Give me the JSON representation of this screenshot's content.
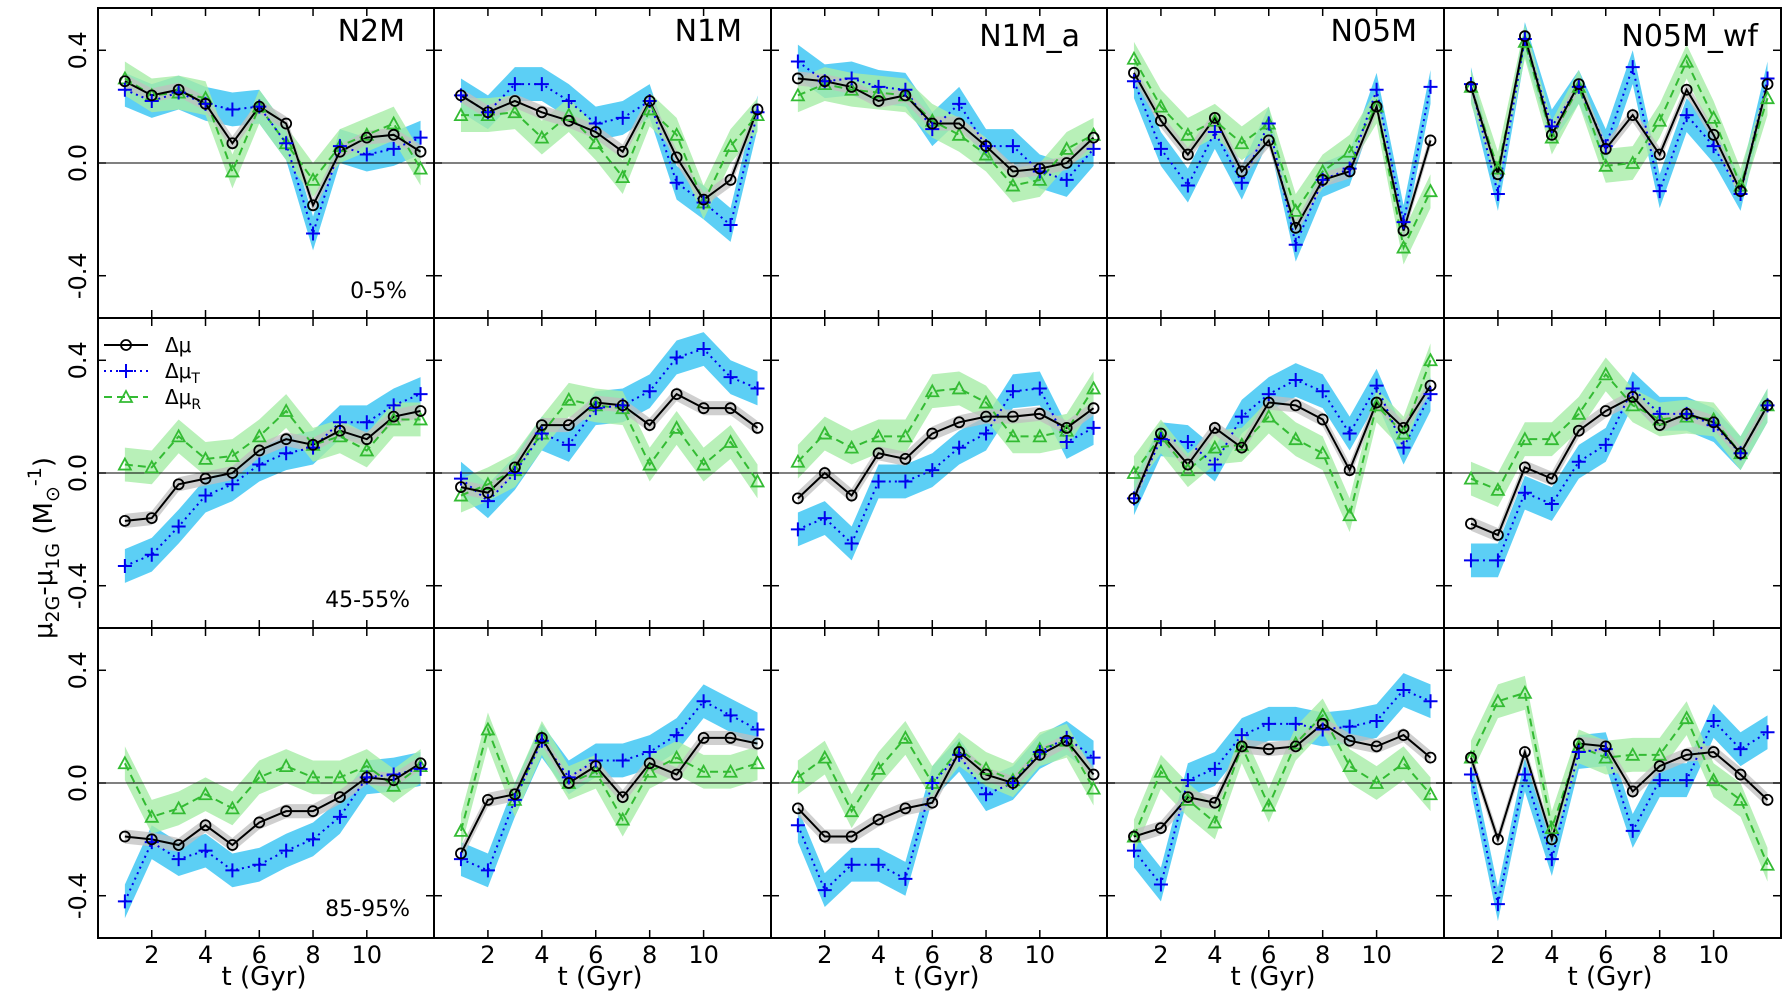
{
  "chart_data": {
    "type": "line",
    "ylabel_main": "μ",
    "ylabel_sub1": "2G",
    "ylabel_mid": "-μ",
    "ylabel_sub2": "1G",
    "ylabel_unit_open": " (M",
    "ylabel_unit_sub": "⊙",
    "ylabel_unit_sup": "-1",
    "ylabel_unit_close": ")",
    "xlabel": "t (Gyr)",
    "xlim": [
      0,
      12.5
    ],
    "ylim": [
      -0.55,
      0.55
    ],
    "xticks": [
      2,
      4,
      6,
      8,
      10
    ],
    "yticks": [
      -0.4,
      0.0,
      0.4
    ],
    "ytick_labels": [
      "-0.4",
      "0.0",
      "0.4"
    ],
    "x": [
      1,
      2,
      3,
      4,
      5,
      6,
      7,
      8,
      9,
      10,
      11,
      12
    ],
    "colors": {
      "total": "#000000",
      "tangential": "#0000ee",
      "radial": "#33bb33",
      "band_total": "#bfbfbf",
      "band_tangential": "#33c3f3",
      "band_radial": "#a6eca6"
    },
    "legend": {
      "total": {
        "base": "Δμ",
        "sub": ""
      },
      "tangential": {
        "base": "Δμ",
        "sub": "T"
      },
      "radial": {
        "base": "Δμ",
        "sub": "R"
      }
    },
    "columns": [
      "N2M",
      "N1M",
      "N1M_a",
      "N05M",
      "N05M_wf"
    ],
    "rows": [
      "0-5%",
      "45-55%",
      "85-95%"
    ],
    "panels": [
      [
        {
          "total": [
            0.29,
            0.24,
            0.26,
            0.21,
            0.07,
            0.2,
            0.14,
            -0.15,
            0.04,
            0.09,
            0.1,
            0.04
          ],
          "tangential": [
            0.26,
            0.22,
            0.25,
            0.21,
            0.19,
            0.2,
            0.07,
            -0.25,
            0.06,
            0.03,
            0.05,
            0.09
          ],
          "radial": [
            0.3,
            0.24,
            0.25,
            0.23,
            -0.03,
            0.2,
            0.07,
            -0.06,
            0.06,
            0.1,
            0.14,
            -0.02
          ]
        },
        {
          "total": [
            0.24,
            0.18,
            0.22,
            0.18,
            0.15,
            0.11,
            0.04,
            0.22,
            0.02,
            -0.13,
            -0.06,
            0.19
          ],
          "tangential": [
            0.24,
            0.18,
            0.28,
            0.28,
            0.22,
            0.14,
            0.16,
            0.22,
            -0.07,
            -0.14,
            -0.22,
            0.18
          ],
          "radial": [
            0.17,
            0.17,
            0.18,
            0.09,
            0.17,
            0.07,
            -0.05,
            0.19,
            0.1,
            -0.14,
            0.06,
            0.17
          ]
        },
        {
          "total": [
            0.3,
            0.29,
            0.27,
            0.22,
            0.24,
            0.14,
            0.14,
            0.06,
            -0.03,
            -0.02,
            0.0,
            0.09
          ],
          "tangential": [
            0.36,
            0.29,
            0.3,
            0.27,
            0.26,
            0.12,
            0.21,
            0.06,
            0.06,
            -0.03,
            -0.06,
            0.05
          ],
          "radial": [
            0.24,
            0.28,
            0.26,
            0.25,
            0.24,
            0.15,
            0.1,
            0.03,
            -0.08,
            -0.06,
            0.05,
            0.1
          ]
        },
        {
          "total": [
            0.32,
            0.15,
            0.03,
            0.16,
            -0.03,
            0.08,
            -0.23,
            -0.06,
            -0.03,
            0.2,
            -0.24,
            0.08
          ],
          "tangential": [
            0.29,
            0.05,
            -0.08,
            0.11,
            -0.07,
            0.14,
            -0.29,
            -0.06,
            -0.02,
            0.26,
            -0.21,
            0.27
          ],
          "radial": [
            0.37,
            0.2,
            0.1,
            0.15,
            0.07,
            0.14,
            -0.17,
            -0.03,
            0.04,
            0.2,
            -0.3,
            -0.1
          ]
        },
        {
          "total": [
            0.27,
            -0.04,
            0.45,
            0.1,
            0.28,
            0.05,
            0.17,
            0.03,
            0.26,
            0.1,
            -0.1,
            0.28
          ],
          "tangential": [
            0.28,
            -0.11,
            0.44,
            0.13,
            0.27,
            0.06,
            0.34,
            -0.1,
            0.17,
            0.06,
            -0.11,
            0.3
          ],
          "radial": [
            0.27,
            -0.02,
            0.43,
            0.09,
            0.27,
            -0.01,
            0.0,
            0.15,
            0.36,
            0.16,
            -0.08,
            0.23
          ]
        }
      ],
      [
        {
          "total": [
            -0.17,
            -0.16,
            -0.04,
            -0.02,
            0.0,
            0.08,
            0.12,
            0.1,
            0.15,
            0.12,
            0.2,
            0.22
          ],
          "tangential": [
            -0.33,
            -0.29,
            -0.19,
            -0.08,
            -0.04,
            0.03,
            0.07,
            0.09,
            0.18,
            0.18,
            0.24,
            0.28
          ],
          "radial": [
            0.03,
            0.02,
            0.13,
            0.05,
            0.06,
            0.13,
            0.22,
            0.1,
            0.13,
            0.08,
            0.19,
            0.19
          ]
        },
        {
          "total": [
            -0.05,
            -0.07,
            0.02,
            0.17,
            0.17,
            0.25,
            0.24,
            0.17,
            0.28,
            0.23,
            0.23,
            0.16
          ],
          "tangential": [
            -0.02,
            -0.1,
            0.0,
            0.14,
            0.1,
            0.23,
            0.24,
            0.29,
            0.41,
            0.44,
            0.34,
            0.3
          ],
          "radial": [
            -0.08,
            -0.04,
            0.01,
            0.14,
            0.26,
            0.24,
            0.23,
            0.03,
            0.16,
            0.03,
            0.11,
            -0.03
          ]
        },
        {
          "total": [
            -0.09,
            0.0,
            -0.08,
            0.07,
            0.05,
            0.14,
            0.18,
            0.2,
            0.2,
            0.21,
            0.16,
            0.23
          ],
          "tangential": [
            -0.2,
            -0.16,
            -0.25,
            -0.03,
            -0.03,
            0.01,
            0.09,
            0.14,
            0.29,
            0.3,
            0.11,
            0.16
          ],
          "radial": [
            0.04,
            0.14,
            0.09,
            0.13,
            0.13,
            0.29,
            0.3,
            0.25,
            0.13,
            0.13,
            0.15,
            0.3
          ]
        },
        {
          "total": [
            -0.09,
            0.14,
            0.03,
            0.16,
            0.09,
            0.25,
            0.24,
            0.19,
            0.01,
            0.25,
            0.16,
            0.31
          ],
          "tangential": [
            -0.09,
            0.12,
            0.11,
            0.03,
            0.2,
            0.28,
            0.33,
            0.29,
            0.14,
            0.31,
            0.09,
            0.28
          ],
          "radial": [
            0.0,
            0.13,
            0.01,
            0.09,
            0.1,
            0.2,
            0.12,
            0.07,
            -0.15,
            0.24,
            0.14,
            0.4
          ]
        },
        {
          "total": [
            -0.18,
            -0.22,
            0.02,
            -0.02,
            0.15,
            0.22,
            0.27,
            0.17,
            0.21,
            0.18,
            0.07,
            0.24
          ],
          "tangential": [
            -0.31,
            -0.31,
            -0.07,
            -0.11,
            0.04,
            0.1,
            0.3,
            0.21,
            0.21,
            0.17,
            0.07,
            0.24
          ],
          "radial": [
            -0.02,
            -0.06,
            0.12,
            0.12,
            0.21,
            0.35,
            0.24,
            0.19,
            0.2,
            0.19,
            0.07,
            0.24
          ]
        }
      ],
      [
        {
          "total": [
            -0.19,
            -0.2,
            -0.22,
            -0.15,
            -0.22,
            -0.14,
            -0.1,
            -0.1,
            -0.05,
            0.02,
            0.01,
            0.07
          ],
          "tangential": [
            -0.42,
            -0.21,
            -0.27,
            -0.24,
            -0.31,
            -0.29,
            -0.24,
            -0.2,
            -0.12,
            0.02,
            0.03,
            0.05
          ],
          "radial": [
            0.07,
            -0.12,
            -0.09,
            -0.04,
            -0.09,
            0.02,
            0.06,
            0.02,
            0.02,
            0.06,
            -0.01,
            0.06
          ]
        },
        {
          "total": [
            -0.25,
            -0.06,
            -0.04,
            0.16,
            0.0,
            0.06,
            -0.05,
            0.07,
            0.03,
            0.16,
            0.16,
            0.14
          ],
          "tangential": [
            -0.27,
            -0.31,
            -0.06,
            0.15,
            0.02,
            0.08,
            0.08,
            0.11,
            0.17,
            0.29,
            0.24,
            0.19
          ],
          "radial": [
            -0.17,
            0.19,
            -0.06,
            0.16,
            0.0,
            0.04,
            -0.13,
            0.04,
            0.09,
            0.04,
            0.04,
            0.07
          ]
        },
        {
          "total": [
            -0.09,
            -0.19,
            -0.19,
            -0.13,
            -0.09,
            -0.07,
            0.11,
            0.03,
            0.0,
            0.1,
            0.15,
            0.03
          ],
          "tangential": [
            -0.15,
            -0.38,
            -0.29,
            -0.29,
            -0.34,
            0.0,
            0.1,
            -0.04,
            0.0,
            0.11,
            0.16,
            0.09
          ],
          "radial": [
            0.02,
            0.09,
            -0.1,
            0.05,
            0.16,
            0.0,
            0.12,
            0.05,
            0.01,
            0.12,
            0.15,
            -0.02
          ]
        },
        {
          "total": [
            -0.19,
            -0.16,
            -0.05,
            -0.07,
            0.13,
            0.12,
            0.13,
            0.21,
            0.15,
            0.13,
            0.17,
            0.09
          ],
          "tangential": [
            -0.24,
            -0.36,
            0.01,
            0.05,
            0.17,
            0.21,
            0.21,
            0.19,
            0.2,
            0.22,
            0.33,
            0.29
          ],
          "radial": [
            -0.19,
            0.04,
            -0.06,
            -0.14,
            0.13,
            -0.08,
            0.14,
            0.24,
            0.06,
            0.0,
            0.07,
            -0.04
          ]
        },
        {
          "total": [
            0.09,
            -0.2,
            0.11,
            -0.2,
            0.14,
            0.13,
            -0.03,
            0.06,
            0.1,
            0.11,
            0.03,
            -0.06
          ],
          "tangential": [
            0.03,
            -0.43,
            0.03,
            -0.27,
            0.11,
            0.12,
            -0.17,
            0.01,
            0.01,
            0.22,
            0.12,
            0.18
          ],
          "radial": [
            0.09,
            0.29,
            0.32,
            -0.16,
            0.13,
            0.09,
            0.1,
            0.1,
            0.23,
            0.01,
            -0.06,
            -0.29
          ]
        }
      ]
    ]
  }
}
